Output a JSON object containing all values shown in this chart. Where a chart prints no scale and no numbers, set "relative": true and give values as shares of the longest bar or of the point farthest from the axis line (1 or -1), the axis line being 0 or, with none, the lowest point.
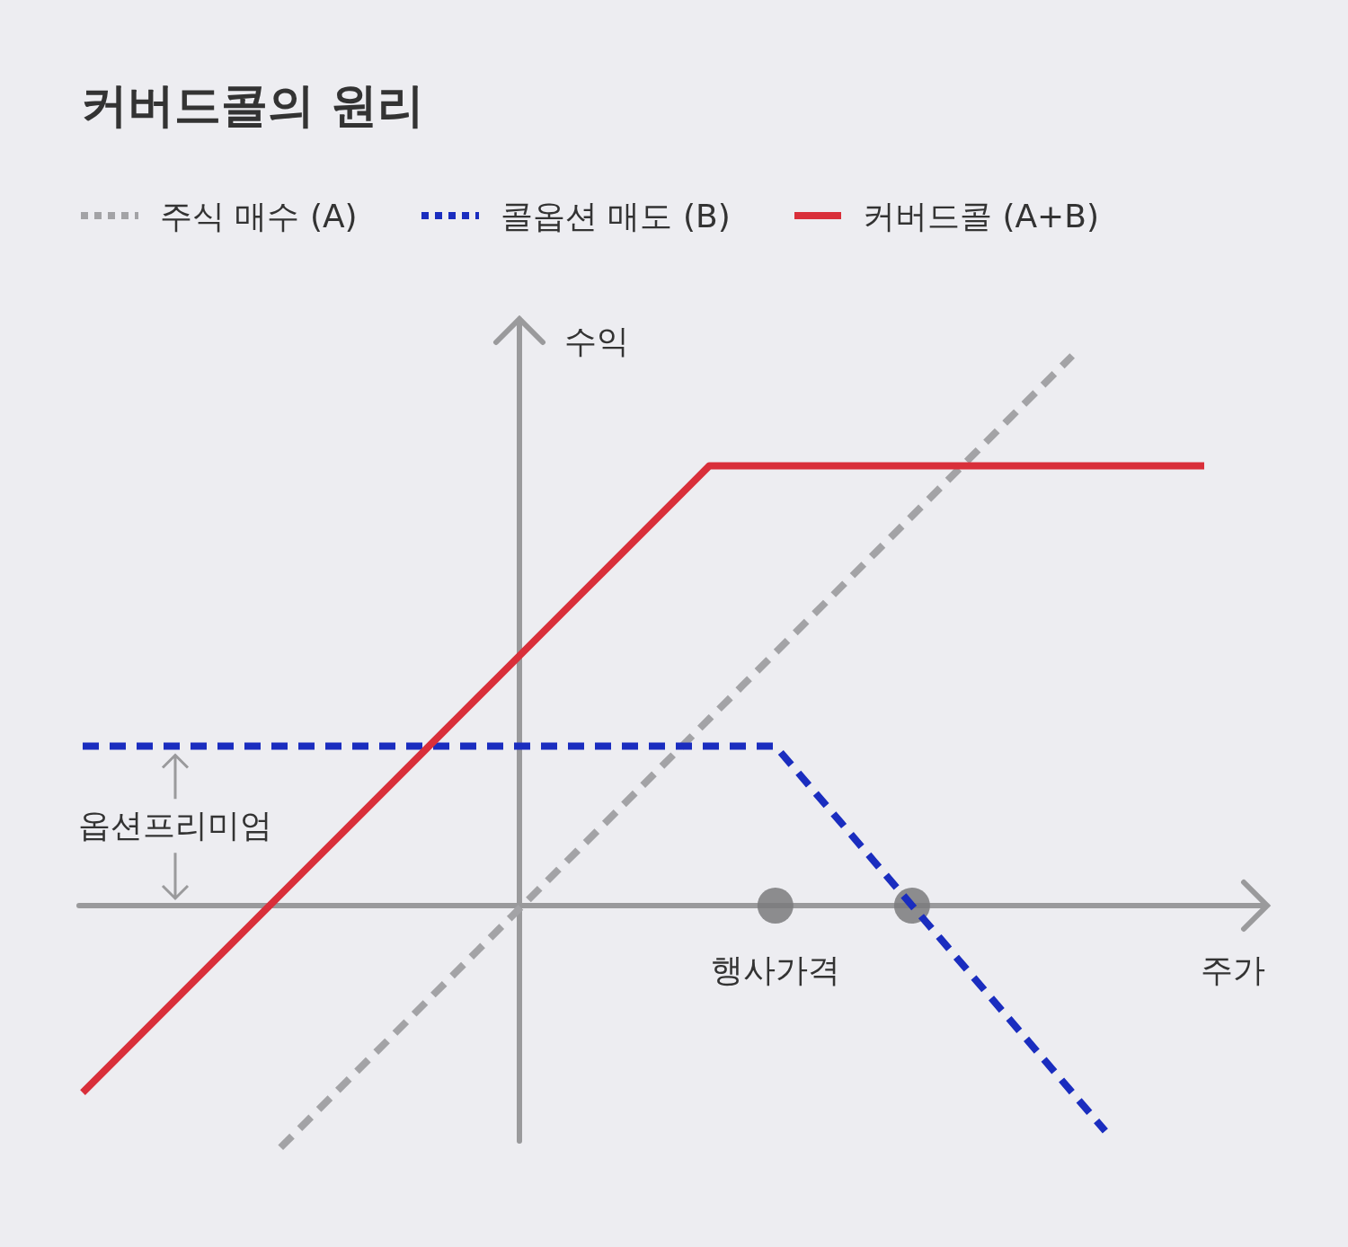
{
  "chart_data": {
    "type": "line",
    "title": "커버드콜의 원리",
    "xlabel": "주가",
    "ylabel": "수익",
    "relative": true,
    "legend": "top left",
    "categories": [
      null,
      null,
      null,
      null,
      null,
      null,
      null,
      null,
      null,
      null,
      null,
      null,
      null,
      null,
      null,
      null,
      null,
      null,
      null,
      null,
      null,
      null,
      null,
      null,
      null,
      null,
      null,
      null,
      null,
      null,
      null,
      null,
      null,
      null,
      null
    ],
    "series": [
      {
        "name": "주식 매수 (A)",
        "color": "#a3a3a6",
        "line_style": "dashed",
        "values": [
          null,
          null,
          null,
          null,
          null,
          null,
          -0.44,
          -0.38,
          -0.32,
          -0.26,
          -0.2,
          -0.14,
          -0.08,
          -0.02,
          0.04,
          0.1,
          0.16,
          0.22,
          0.28,
          0.34,
          0.4,
          0.46,
          0.52,
          0.58,
          0.64,
          0.7,
          0.76,
          0.82,
          0.88,
          0.94,
          1,
          null,
          null,
          null,
          null
        ]
      },
      {
        "name": "콜옵션 매도 (B)",
        "color": "#1a2dbf",
        "line_style": "dashed",
        "values": [
          0.29,
          0.29,
          0.29,
          0.29,
          0.29,
          0.29,
          0.29,
          0.29,
          0.29,
          0.29,
          0.29,
          0.29,
          0.29,
          0.29,
          0.29,
          0.29,
          0.29,
          0.29,
          0.29,
          0.29,
          0.29,
          0.29,
          0.22,
          0.15,
          0.08,
          0.01,
          -0.06,
          -0.13,
          -0.2,
          -0.27,
          -0.34,
          -0.41,
          null,
          null,
          null
        ]
      },
      {
        "name": "커버드콜 (A+B)",
        "color": "#d92f3a",
        "line_style": "solid",
        "values": [
          -0.34,
          -0.28,
          -0.22,
          -0.16,
          -0.1,
          -0.04,
          0.02,
          0.08,
          0.14,
          0.2,
          0.26,
          0.32,
          0.38,
          0.44,
          0.5,
          0.56,
          0.62,
          0.68,
          0.74,
          0.8,
          0.8,
          0.8,
          0.8,
          0.8,
          0.8,
          0.8,
          0.8,
          0.8,
          0.8,
          0.8,
          0.8,
          0.8,
          0.8,
          0.8,
          0.8
        ]
      }
    ],
    "annotations": [
      "행사가격",
      "옵션프리미엄"
    ]
  }
}
